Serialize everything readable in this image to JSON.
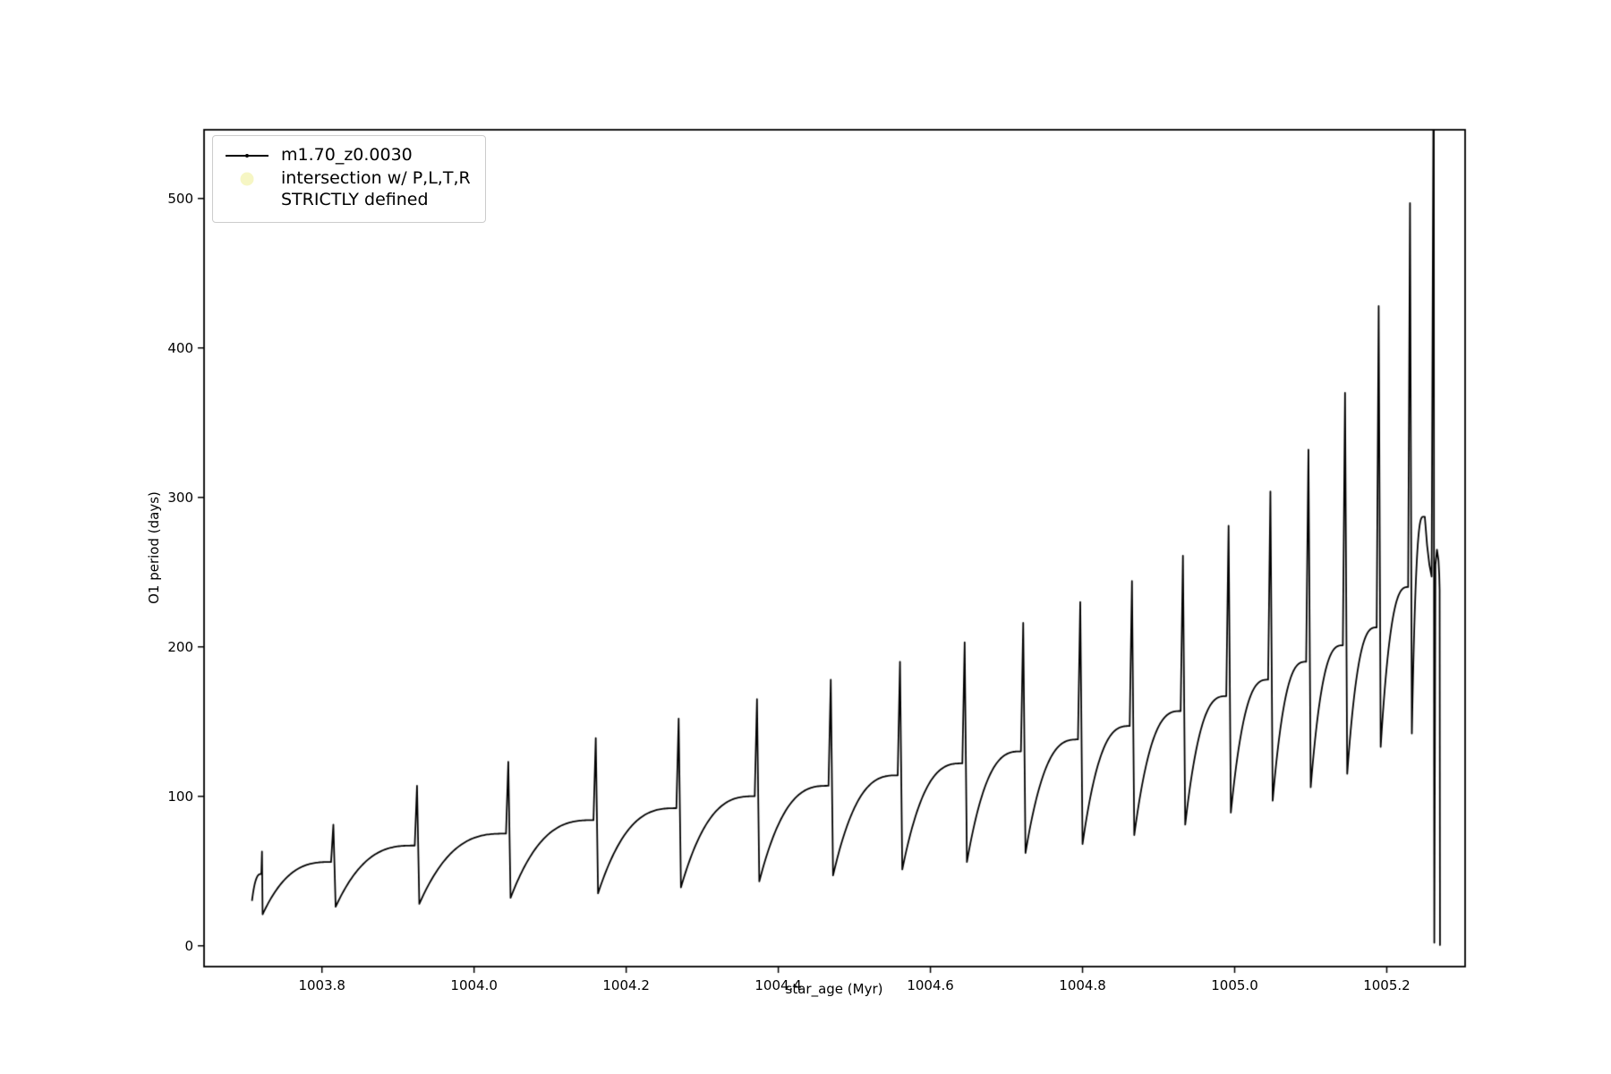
{
  "figure": {
    "background": "#ffffff"
  },
  "chart_data": {
    "type": "line",
    "title": "",
    "xlabel": "star_age (Myr)",
    "ylabel": "O1 period (days)",
    "xlim": [
      1003.645,
      1005.303
    ],
    "ylim": [
      -14,
      546
    ],
    "grid": false,
    "legend_position": "upper left",
    "xticks": {
      "values": [
        1003.8,
        1004.0,
        1004.2,
        1004.4,
        1004.6,
        1004.8,
        1005.0,
        1005.2
      ],
      "labels": [
        "1003.8",
        "1004.0",
        "1004.2",
        "1004.4",
        "1004.6",
        "1004.8",
        "1005.0",
        "1005.2"
      ]
    },
    "yticks": {
      "values": [
        0,
        100,
        200,
        300,
        400,
        500
      ],
      "labels": [
        "0",
        "100",
        "200",
        "300",
        "400",
        "500"
      ]
    },
    "legend": [
      {
        "label": "m1.70_z0.0030",
        "marker": "line-with-dot",
        "color": "#000000"
      },
      {
        "lines": [
          "intersection w/ P,L,T,R",
          "STRICTLY defined"
        ],
        "marker": "circle",
        "color": "#f6f6c4"
      }
    ],
    "series": {
      "name": "m1.70_z0.0030",
      "color": "#000000",
      "description": "sawtooth oscillation cycles: [x_start, x_end, dip_value, plateau_value, spike_peak] in (Myr, days)",
      "cycles": [
        [
          1003.708,
          1003.722,
          30,
          48,
          63
        ],
        [
          1003.722,
          1003.818,
          21,
          56,
          81
        ],
        [
          1003.818,
          1003.928,
          26,
          67,
          107
        ],
        [
          1003.928,
          1004.048,
          28,
          75,
          123
        ],
        [
          1004.048,
          1004.163,
          32,
          84,
          139
        ],
        [
          1004.163,
          1004.272,
          35,
          92,
          152
        ],
        [
          1004.272,
          1004.375,
          39,
          100,
          165
        ],
        [
          1004.375,
          1004.472,
          43,
          107,
          178
        ],
        [
          1004.472,
          1004.563,
          47,
          114,
          190
        ],
        [
          1004.563,
          1004.648,
          51,
          122,
          203
        ],
        [
          1004.648,
          1004.725,
          56,
          130,
          216
        ],
        [
          1004.725,
          1004.8,
          62,
          138,
          230
        ],
        [
          1004.8,
          1004.868,
          68,
          147,
          244
        ],
        [
          1004.868,
          1004.935,
          74,
          157,
          261
        ],
        [
          1004.935,
          1004.995,
          81,
          167,
          281
        ],
        [
          1004.995,
          1005.05,
          89,
          178,
          304
        ],
        [
          1005.05,
          1005.1,
          97,
          190,
          332
        ],
        [
          1005.1,
          1005.148,
          106,
          201,
          370
        ],
        [
          1005.148,
          1005.192,
          115,
          213,
          428
        ],
        [
          1005.192,
          1005.233,
          133,
          240,
          497
        ],
        [
          1005.233,
          1005.25,
          142,
          287,
          287
        ]
      ],
      "tail_points": [
        [
          1005.25,
          287
        ],
        [
          1005.253,
          268
        ],
        [
          1005.256,
          255
        ],
        [
          1005.259,
          247
        ],
        [
          1005.2612,
          546
        ],
        [
          1005.2619,
          546
        ],
        [
          1005.2622,
          120
        ],
        [
          1005.2625,
          2
        ],
        [
          1005.264,
          255
        ],
        [
          1005.266,
          265
        ],
        [
          1005.268,
          258
        ],
        [
          1005.269,
          248
        ],
        [
          1005.2695,
          238
        ],
        [
          1005.27,
          0
        ]
      ]
    },
    "colors": {
      "line": "#000000",
      "intersection_marker": "#f6f6c4",
      "axes": "#000000",
      "legend_border": "#cccccc"
    }
  }
}
